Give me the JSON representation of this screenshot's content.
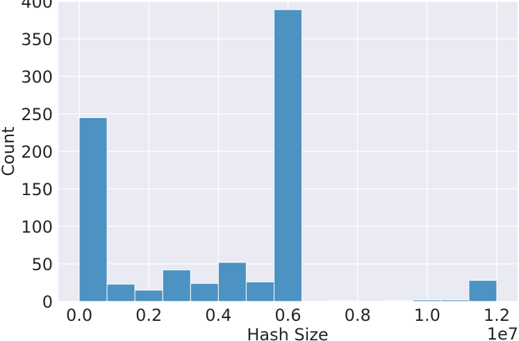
{
  "chart_data": {
    "type": "bar",
    "title": "",
    "xlabel": "Hash Size",
    "ylabel": "Count",
    "x_offset_label": "1e7",
    "x_multiplier": 10000000,
    "xlim": [
      -0.06,
      1.26
    ],
    "ylim": [
      0,
      400
    ],
    "xticks": [
      "0.0",
      "0.2",
      "0.4",
      "0.6",
      "0.8",
      "1.0",
      "1.2"
    ],
    "yticks": [
      "0",
      "50",
      "100",
      "150",
      "200",
      "250",
      "300",
      "350",
      "400"
    ],
    "grid": true,
    "bar_color": "#4c92c3",
    "background": "#eaeaf2",
    "bins": [
      {
        "x_start": 0.0,
        "x_end": 0.08,
        "count": 245
      },
      {
        "x_start": 0.08,
        "x_end": 0.16,
        "count": 23
      },
      {
        "x_start": 0.16,
        "x_end": 0.24,
        "count": 15
      },
      {
        "x_start": 0.24,
        "x_end": 0.32,
        "count": 42
      },
      {
        "x_start": 0.32,
        "x_end": 0.4,
        "count": 24
      },
      {
        "x_start": 0.4,
        "x_end": 0.48,
        "count": 52
      },
      {
        "x_start": 0.48,
        "x_end": 0.56,
        "count": 26
      },
      {
        "x_start": 0.56,
        "x_end": 0.64,
        "count": 389
      },
      {
        "x_start": 0.64,
        "x_end": 0.72,
        "count": 0
      },
      {
        "x_start": 0.72,
        "x_end": 0.8,
        "count": 1
      },
      {
        "x_start": 0.8,
        "x_end": 0.88,
        "count": 0
      },
      {
        "x_start": 0.88,
        "x_end": 0.96,
        "count": 1
      },
      {
        "x_start": 0.96,
        "x_end": 1.04,
        "count": 2
      },
      {
        "x_start": 1.04,
        "x_end": 1.12,
        "count": 2
      },
      {
        "x_start": 1.12,
        "x_end": 1.2,
        "count": 28
      }
    ]
  }
}
